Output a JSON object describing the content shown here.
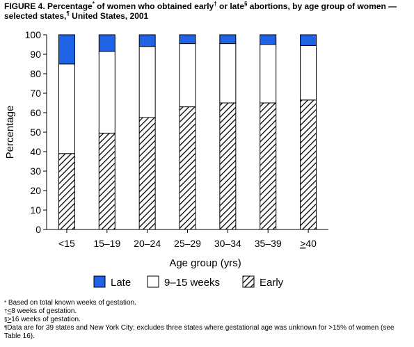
{
  "title": {
    "prefix": "FIGURE 4. Percentage",
    "mark1": "*",
    "mid1": " of women who obtained early",
    "mark2": "†",
    "mid2": " or late",
    "mark3": "§",
    "mid3": " abortions, by age group of women — selected states,",
    "mark4": "¶",
    "suffix": " United States, 2001"
  },
  "chart_data": {
    "type": "bar",
    "stacked": true,
    "categories": [
      "<15",
      "15–19",
      "20–24",
      "25–29",
      "30–34",
      "35–39",
      ">40"
    ],
    "last_category_display": {
      "underlined": ">",
      "rest": "40"
    },
    "series": [
      {
        "name": "Early",
        "values": [
          39,
          49.5,
          57.5,
          63,
          65,
          65,
          66.5
        ],
        "color": "#ffffff",
        "pattern": "diagonal-hatch"
      },
      {
        "name": "9–15 weeks",
        "values": [
          46,
          42,
          36.5,
          32.5,
          30.5,
          30,
          28
        ],
        "color": "#ffffff",
        "pattern": "none"
      },
      {
        "name": "Late",
        "values": [
          15,
          8.5,
          6,
          4.5,
          4.5,
          5,
          5.5
        ],
        "color": "#1f63e6",
        "pattern": "none"
      }
    ],
    "legend_order": [
      "Late",
      "9–15 weeks",
      "Early"
    ],
    "legend_position": "bottom",
    "xlabel": "Age group (yrs)",
    "ylabel": "Percentage",
    "ylim": [
      0,
      100
    ],
    "yticks": [
      0,
      10,
      20,
      30,
      40,
      50,
      60,
      70,
      80,
      90,
      100
    ],
    "grid": false
  },
  "footnotes": {
    "f1": {
      "mark": "*",
      "text": " Based on total known weeks of gestation."
    },
    "f2": {
      "mark": "†",
      "ul": "<",
      "text": "8 weeks of gestation."
    },
    "f3": {
      "mark": "§",
      "ul": ">",
      "text": "16 weeks of gestation."
    },
    "f4": {
      "mark": "¶",
      "text": "Data are for 39 states and New York City; excludes three states where gestational age was unknown for >15% of women (see Table 16)."
    }
  }
}
